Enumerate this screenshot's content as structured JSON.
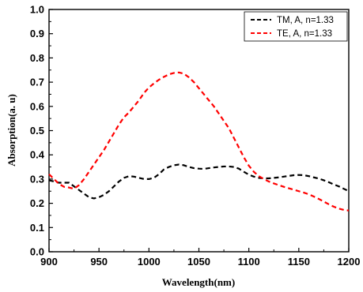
{
  "chart_data": {
    "type": "line",
    "title": "",
    "xlabel": "Wavelength(nm)",
    "ylabel": "Absorption(a. u)",
    "xlim": [
      900,
      1200
    ],
    "ylim": [
      0.0,
      1.0
    ],
    "x_ticks": [
      "900",
      "950",
      "1000",
      "1050",
      "1100",
      "1150",
      "1200"
    ],
    "y_ticks": [
      "0.0",
      "0.1",
      "0.2",
      "0.3",
      "0.4",
      "0.5",
      "0.6",
      "0.7",
      "0.8",
      "0.9",
      "1.0"
    ],
    "grid": false,
    "legend_position": "top-right",
    "series": [
      {
        "name": "TM, A, n=1.33",
        "color": "#000000",
        "dash": "dashed",
        "x": [
          900,
          905,
          910,
          915,
          920,
          925,
          930,
          935,
          940,
          945,
          950,
          955,
          960,
          965,
          970,
          975,
          980,
          985,
          990,
          995,
          1000,
          1005,
          1010,
          1015,
          1020,
          1025,
          1030,
          1035,
          1040,
          1045,
          1050,
          1055,
          1060,
          1065,
          1070,
          1075,
          1080,
          1085,
          1090,
          1095,
          1100,
          1105,
          1110,
          1115,
          1120,
          1125,
          1130,
          1135,
          1140,
          1145,
          1150,
          1155,
          1160,
          1165,
          1170,
          1175,
          1180,
          1185,
          1190,
          1195,
          1200
        ],
        "y": [
          0.295,
          0.29,
          0.285,
          0.285,
          0.285,
          0.27,
          0.255,
          0.24,
          0.225,
          0.22,
          0.225,
          0.235,
          0.25,
          0.27,
          0.29,
          0.305,
          0.312,
          0.31,
          0.305,
          0.3,
          0.3,
          0.305,
          0.32,
          0.34,
          0.35,
          0.357,
          0.36,
          0.357,
          0.35,
          0.345,
          0.343,
          0.342,
          0.345,
          0.348,
          0.35,
          0.352,
          0.352,
          0.35,
          0.343,
          0.33,
          0.318,
          0.31,
          0.305,
          0.303,
          0.303,
          0.305,
          0.307,
          0.31,
          0.313,
          0.316,
          0.317,
          0.316,
          0.312,
          0.307,
          0.302,
          0.295,
          0.287,
          0.278,
          0.27,
          0.26,
          0.25
        ]
      },
      {
        "name": "TE, A, n=1.33",
        "color": "#ff0000",
        "dash": "dashed",
        "x": [
          900,
          905,
          910,
          915,
          920,
          925,
          930,
          935,
          940,
          945,
          950,
          955,
          960,
          965,
          970,
          975,
          980,
          985,
          990,
          995,
          1000,
          1005,
          1010,
          1015,
          1020,
          1025,
          1030,
          1035,
          1040,
          1045,
          1050,
          1055,
          1060,
          1065,
          1070,
          1075,
          1080,
          1085,
          1090,
          1095,
          1100,
          1105,
          1110,
          1115,
          1120,
          1125,
          1130,
          1135,
          1140,
          1145,
          1150,
          1155,
          1160,
          1165,
          1170,
          1175,
          1180,
          1185,
          1190,
          1195,
          1200
        ],
        "y": [
          0.32,
          0.3,
          0.28,
          0.268,
          0.265,
          0.26,
          0.275,
          0.3,
          0.33,
          0.36,
          0.39,
          0.42,
          0.455,
          0.49,
          0.525,
          0.555,
          0.575,
          0.6,
          0.625,
          0.655,
          0.678,
          0.695,
          0.71,
          0.722,
          0.732,
          0.738,
          0.74,
          0.735,
          0.72,
          0.7,
          0.675,
          0.65,
          0.625,
          0.6,
          0.57,
          0.54,
          0.51,
          0.47,
          0.43,
          0.39,
          0.355,
          0.33,
          0.312,
          0.3,
          0.29,
          0.282,
          0.275,
          0.268,
          0.262,
          0.256,
          0.25,
          0.244,
          0.237,
          0.228,
          0.218,
          0.207,
          0.196,
          0.186,
          0.178,
          0.173,
          0.17
        ]
      }
    ]
  }
}
